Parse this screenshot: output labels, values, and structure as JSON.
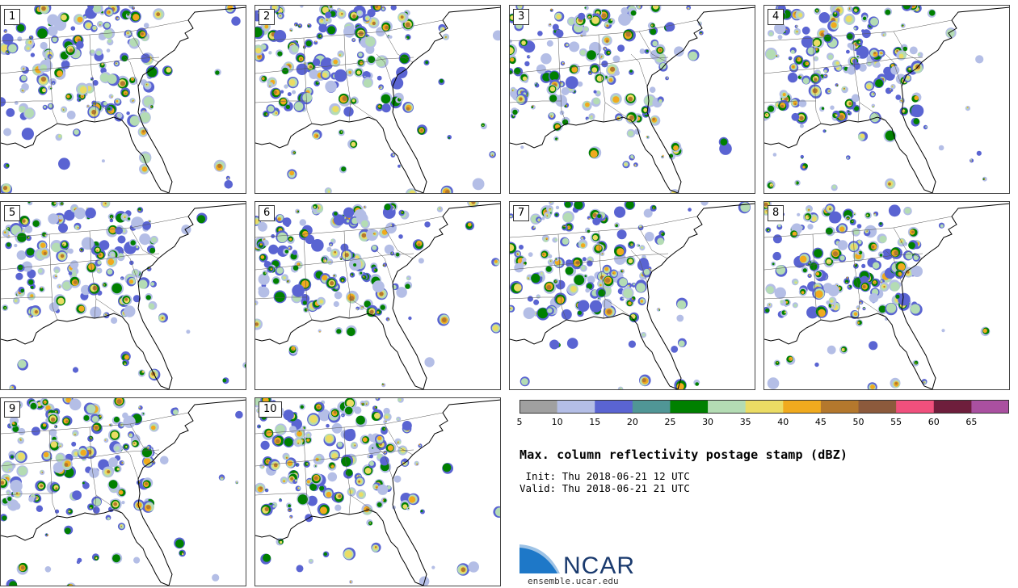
{
  "panels": [
    {
      "label": "1"
    },
    {
      "label": "2"
    },
    {
      "label": "3"
    },
    {
      "label": "4"
    },
    {
      "label": "5"
    },
    {
      "label": "6"
    },
    {
      "label": "7"
    },
    {
      "label": "8"
    },
    {
      "label": "9"
    },
    {
      "label": "10"
    }
  ],
  "colorbar": {
    "colors": [
      "#a0a0a0",
      "#b4bee6",
      "#5a64d2",
      "#509696",
      "#008000",
      "#b4dcb4",
      "#ebdc64",
      "#f0aa1e",
      "#b4782d",
      "#8c5a3c",
      "#f0507d",
      "#6e1e3c",
      "#aa50a0"
    ],
    "ticks": [
      "5",
      "10",
      "15",
      "20",
      "25",
      "30",
      "35",
      "40",
      "45",
      "50",
      "55",
      "60",
      "65"
    ]
  },
  "title": "Max. column reflectivity postage stamp (dBZ)",
  "init_line": " Init: Thu 2018-06-21 12 UTC",
  "valid_line": "Valid: Thu 2018-06-21 21 UTC",
  "logo": {
    "text": "NCAR",
    "url": "ensemble.ucar.edu",
    "color": "#1a3a6e"
  }
}
